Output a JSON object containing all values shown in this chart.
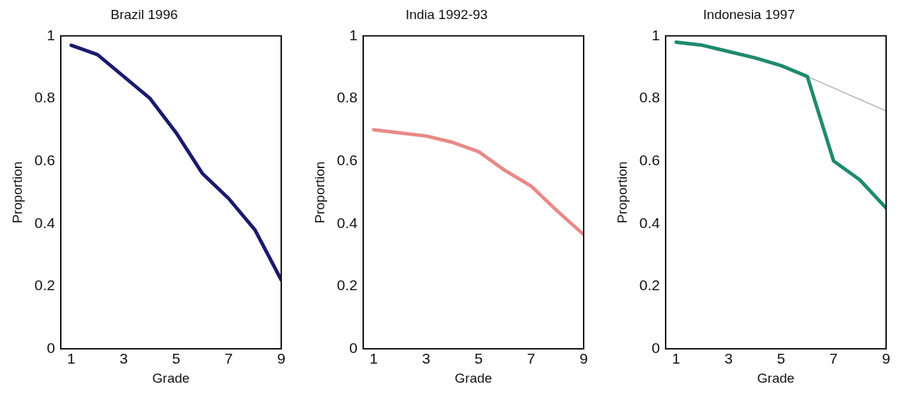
{
  "chart_data": [
    {
      "type": "line",
      "title": "Brazil 1996",
      "xlabel": "Grade",
      "ylabel": "Proportion",
      "x": [
        1,
        2,
        3,
        4,
        5,
        6,
        7,
        8,
        9
      ],
      "series": [
        {
          "color": "#1a1a6e",
          "values": [
            0.97,
            0.94,
            0.87,
            0.8,
            0.69,
            0.56,
            0.48,
            0.38,
            0.22
          ]
        }
      ],
      "xlim": [
        0.6,
        9
      ],
      "xticks": [
        1,
        3,
        5,
        7,
        9
      ],
      "ylim": [
        0,
        1
      ],
      "yticks": [
        0,
        0.2,
        0.4,
        0.6,
        0.8,
        1
      ],
      "grid": false,
      "legend": false,
      "marker": "none",
      "line_style": "solid"
    },
    {
      "type": "line",
      "title": "India 1992-93",
      "xlabel": "Grade",
      "ylabel": "Proportion",
      "x": [
        1,
        2,
        3,
        4,
        5,
        6,
        7,
        8,
        9
      ],
      "series": [
        {
          "color": "#e88a88",
          "values": [
            0.7,
            0.69,
            0.68,
            0.66,
            0.63,
            0.57,
            0.52,
            0.44,
            0.365
          ]
        }
      ],
      "xlim": [
        0.6,
        9
      ],
      "xticks": [
        1,
        3,
        5,
        7,
        9
      ],
      "ylim": [
        0,
        1
      ],
      "yticks": [
        0,
        0.2,
        0.4,
        0.6,
        0.8,
        1
      ],
      "grid": false,
      "legend": false,
      "marker": "none",
      "line_style": "solid"
    },
    {
      "type": "line",
      "title": "Indonesia 1997",
      "xlabel": "Grade",
      "ylabel": "Proportion",
      "x": [
        1,
        2,
        3,
        4,
        5,
        6,
        7,
        8,
        9
      ],
      "series": [
        {
          "color": "#1f8a6e",
          "values": [
            0.98,
            0.97,
            0.95,
            0.93,
            0.905,
            0.87,
            0.6,
            0.54,
            0.45
          ]
        },
        {
          "color": "#b0b0b0",
          "x": [
            6,
            9
          ],
          "values": [
            0.87,
            0.76
          ]
        }
      ],
      "xlim": [
        0.6,
        9
      ],
      "xticks": [
        1,
        3,
        5,
        7,
        9
      ],
      "ylim": [
        0,
        1
      ],
      "yticks": [
        0,
        0.2,
        0.4,
        0.6,
        0.8,
        1
      ],
      "grid": false,
      "legend": false,
      "marker": "none",
      "line_style": "solid"
    }
  ]
}
